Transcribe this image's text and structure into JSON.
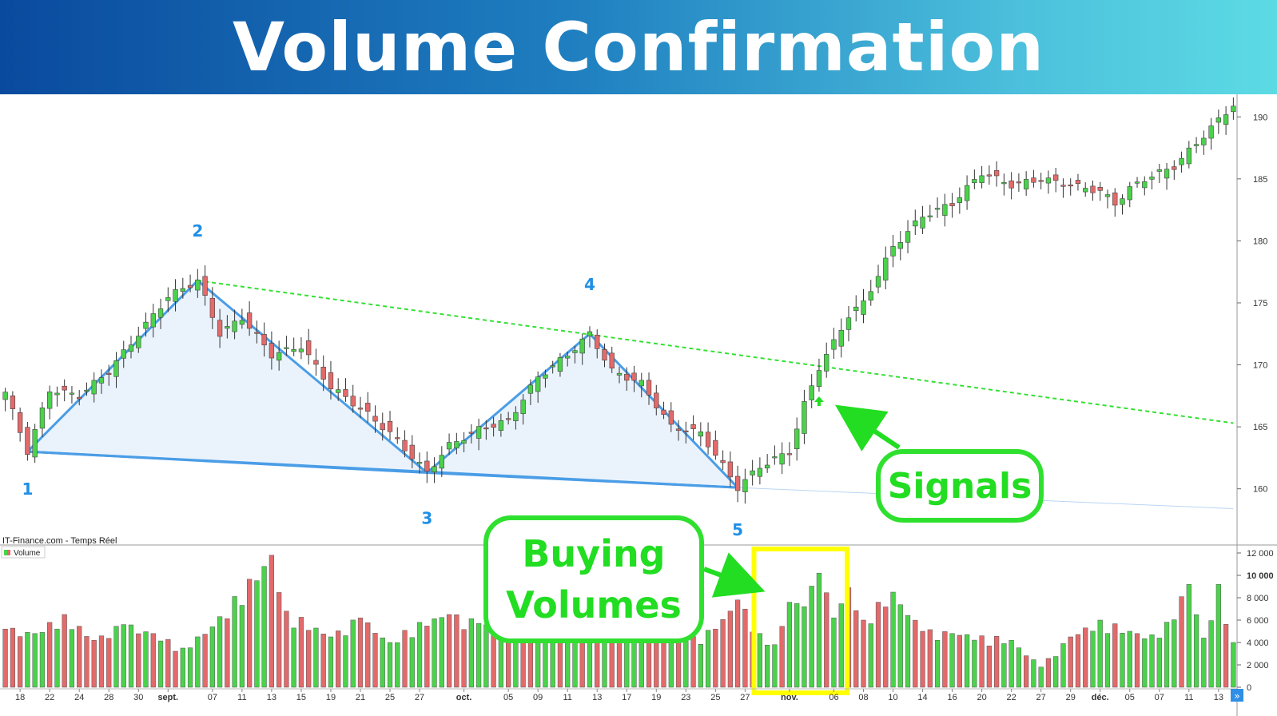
{
  "title": "Volume Confirmation",
  "source_label": "IT-Finance.com - Temps Réel",
  "volume_legend": "Volume",
  "callouts": {
    "signals": "Signals",
    "buying_line1": "Buying",
    "buying_line2": "Volumes"
  },
  "colors": {
    "up": "#4bd24b",
    "down": "#e36a6a",
    "pattern_line": "#4a9de6",
    "resistance": "#33e033",
    "highlight": "#ffff00",
    "callout": "#22dd22"
  },
  "icons": {
    "signal_arrow": "up-arrow-icon",
    "more": "double-chevron-right-icon"
  },
  "chart_data": {
    "type": "candlestick",
    "y_ticks": [
      "160",
      "165",
      "170",
      "175",
      "180",
      "185",
      "190"
    ],
    "ylim": [
      156.5,
      191.5
    ],
    "volume_ticks": [
      "0",
      "2 000",
      "4 000",
      "6 000",
      "8 000",
      "10 000",
      "12 000"
    ],
    "volume_ylim": [
      0,
      12000
    ],
    "x_ticks": [
      {
        "i": 2,
        "label": "18"
      },
      {
        "i": 6,
        "label": "22"
      },
      {
        "i": 10,
        "label": "24"
      },
      {
        "i": 14,
        "label": "28"
      },
      {
        "i": 18,
        "label": "30"
      },
      {
        "i": 22,
        "label": "sept.",
        "bold": true
      },
      {
        "i": 28,
        "label": "07"
      },
      {
        "i": 32,
        "label": "11"
      },
      {
        "i": 36,
        "label": "13"
      },
      {
        "i": 40,
        "label": "15"
      },
      {
        "i": 44,
        "label": "19"
      },
      {
        "i": 48,
        "label": "21"
      },
      {
        "i": 52,
        "label": "25"
      },
      {
        "i": 56,
        "label": "27"
      },
      {
        "i": 62,
        "label": "oct.",
        "bold": true
      },
      {
        "i": 68,
        "label": "05"
      },
      {
        "i": 72,
        "label": "09"
      },
      {
        "i": 76,
        "label": "11"
      },
      {
        "i": 80,
        "label": "13"
      },
      {
        "i": 84,
        "label": "17"
      },
      {
        "i": 88,
        "label": "19"
      },
      {
        "i": 92,
        "label": "23"
      },
      {
        "i": 96,
        "label": "25"
      },
      {
        "i": 100,
        "label": "27"
      },
      {
        "i": 106,
        "label": "nov.",
        "bold": true
      },
      {
        "i": 112,
        "label": "06"
      },
      {
        "i": 116,
        "label": "08"
      },
      {
        "i": 120,
        "label": "10"
      },
      {
        "i": 124,
        "label": "14"
      },
      {
        "i": 128,
        "label": "16"
      },
      {
        "i": 132,
        "label": "20"
      },
      {
        "i": 136,
        "label": "22"
      },
      {
        "i": 140,
        "label": "27"
      },
      {
        "i": 144,
        "label": "29"
      },
      {
        "i": 148,
        "label": "déc.",
        "bold": true
      },
      {
        "i": 152,
        "label": "05"
      },
      {
        "i": 156,
        "label": "07"
      },
      {
        "i": 160,
        "label": "11"
      },
      {
        "i": 164,
        "label": "13"
      }
    ],
    "pattern_points": [
      {
        "label": "1",
        "i": 3,
        "price": 163.0
      },
      {
        "label": "2",
        "i": 26,
        "price": 176.8
      },
      {
        "label": "3",
        "i": 57,
        "price": 161.3
      },
      {
        "label": "4",
        "i": 79,
        "price": 172.5
      },
      {
        "label": "5",
        "i": 99,
        "price": 160.1
      }
    ],
    "resistance_line": {
      "from": {
        "i": 26,
        "price": 176.8
      },
      "to": {
        "i": 166,
        "price": 165.3
      }
    },
    "support_line": {
      "from": {
        "i": 3,
        "price": 163.0
      },
      "to": {
        "i": 166,
        "price": 158.4
      }
    },
    "signal_bar": 110,
    "volume_highlight": {
      "from": 102,
      "to": 113
    },
    "key_closes": [
      [
        0,
        167.8
      ],
      [
        3,
        163.0
      ],
      [
        6,
        168.0
      ],
      [
        10,
        167.5
      ],
      [
        14,
        169.5
      ],
      [
        18,
        172.5
      ],
      [
        22,
        175.5
      ],
      [
        26,
        176.8
      ],
      [
        29,
        172.5
      ],
      [
        32,
        173.8
      ],
      [
        36,
        170.8
      ],
      [
        40,
        171.5
      ],
      [
        44,
        168.2
      ],
      [
        48,
        166.5
      ],
      [
        52,
        164.5
      ],
      [
        57,
        161.3
      ],
      [
        60,
        163.5
      ],
      [
        64,
        164.8
      ],
      [
        68,
        165.5
      ],
      [
        72,
        169.0
      ],
      [
        76,
        170.8
      ],
      [
        79,
        172.5
      ],
      [
        82,
        169.5
      ],
      [
        86,
        168.5
      ],
      [
        90,
        165.0
      ],
      [
        94,
        164.5
      ],
      [
        99,
        160.1
      ],
      [
        102,
        161.8
      ],
      [
        106,
        163.0
      ],
      [
        108,
        166.8
      ],
      [
        110,
        169.8
      ],
      [
        112,
        171.8
      ],
      [
        114,
        174.0
      ],
      [
        116,
        175.0
      ],
      [
        120,
        179.5
      ],
      [
        124,
        182.0
      ],
      [
        128,
        183.0
      ],
      [
        132,
        185.5
      ],
      [
        136,
        184.5
      ],
      [
        140,
        185.0
      ],
      [
        144,
        184.5
      ],
      [
        148,
        184.0
      ],
      [
        150,
        183.0
      ],
      [
        152,
        184.2
      ],
      [
        154,
        185.0
      ],
      [
        158,
        186.0
      ],
      [
        162,
        188.5
      ],
      [
        166,
        191.0
      ]
    ],
    "volumes": [
      [
        0,
        5200,
        "down"
      ],
      [
        4,
        4800,
        "up"
      ],
      [
        8,
        6500,
        "down"
      ],
      [
        12,
        4200,
        "down"
      ],
      [
        16,
        5600,
        "up"
      ],
      [
        20,
        4800,
        "down"
      ],
      [
        24,
        3500,
        "up"
      ],
      [
        28,
        5400,
        "up"
      ],
      [
        36,
        11800,
        "down"
      ],
      [
        38,
        6800,
        "down"
      ],
      [
        44,
        4500,
        "up"
      ],
      [
        48,
        6200,
        "down"
      ],
      [
        52,
        4000,
        "up"
      ],
      [
        56,
        5800,
        "up"
      ],
      [
        60,
        6500,
        "down"
      ],
      [
        64,
        5700,
        "up"
      ],
      [
        68,
        4900,
        "down"
      ],
      [
        72,
        5000,
        "up"
      ],
      [
        76,
        4800,
        "up"
      ],
      [
        80,
        5800,
        "down"
      ],
      [
        84,
        5000,
        "up"
      ],
      [
        88,
        4800,
        "down"
      ],
      [
        92,
        4100,
        "up"
      ],
      [
        96,
        5200,
        "down"
      ],
      [
        99,
        7800,
        "down"
      ],
      [
        102,
        4800,
        "up"
      ],
      [
        104,
        3800,
        "up"
      ],
      [
        106,
        7600,
        "up"
      ],
      [
        108,
        7200,
        "up"
      ],
      [
        110,
        10200,
        "up"
      ],
      [
        112,
        6200,
        "up"
      ],
      [
        114,
        8900,
        "down"
      ],
      [
        116,
        6000,
        "down"
      ],
      [
        118,
        7600,
        "down"
      ],
      [
        120,
        8500,
        "up"
      ],
      [
        124,
        5000,
        "down"
      ],
      [
        128,
        4800,
        "up"
      ],
      [
        132,
        4600,
        "down"
      ],
      [
        136,
        4200,
        "up"
      ],
      [
        140,
        1800,
        "up"
      ],
      [
        144,
        4500,
        "down"
      ],
      [
        148,
        6000,
        "up"
      ],
      [
        152,
        5000,
        "up"
      ],
      [
        156,
        4400,
        "up"
      ],
      [
        160,
        9200,
        "up"
      ],
      [
        162,
        4400,
        "up"
      ],
      [
        164,
        9200,
        "up"
      ],
      [
        166,
        4000,
        "up"
      ]
    ]
  }
}
